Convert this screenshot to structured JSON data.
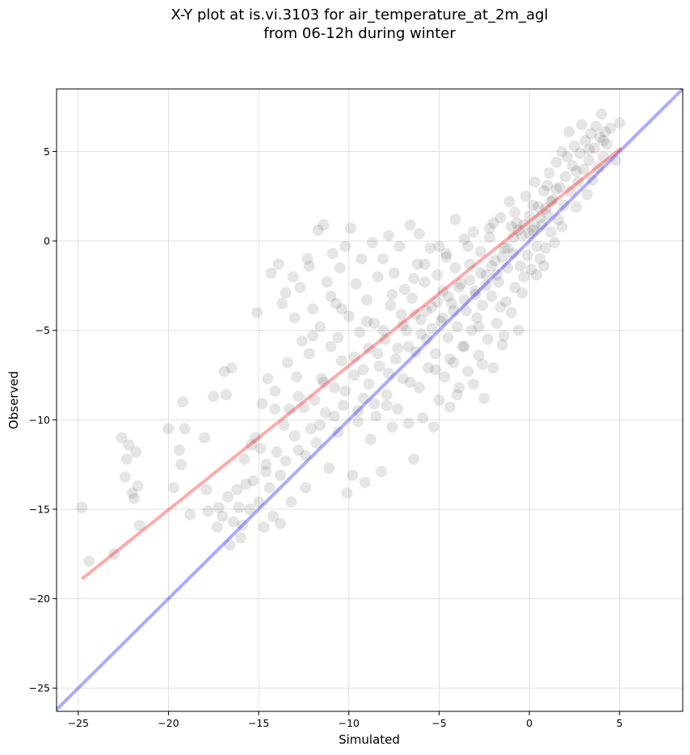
{
  "chart_data": {
    "type": "scatter",
    "title_line1": "X-Y plot at is.vi.3103 for air_temperature_at_2m_agl",
    "title_line2": "from 06-12h during winter",
    "xlabel": "Simulated",
    "ylabel": "Observed",
    "xlim": [
      -26.2,
      8.5
    ],
    "ylim": [
      -26.3,
      8.5
    ],
    "xticks": [
      -25,
      -20,
      -15,
      -10,
      -5,
      0,
      5
    ],
    "yticks": [
      -25,
      -20,
      -15,
      -10,
      -5,
      0,
      5
    ],
    "xtick_labels": [
      "−25",
      "−20",
      "−15",
      "−10",
      "−5",
      "0",
      "5"
    ],
    "ytick_labels": [
      "−25",
      "−20",
      "−15",
      "−10",
      "−5",
      "0",
      "5"
    ],
    "grid": true,
    "colors": {
      "points": "#000000",
      "fit_line": "#ff0000",
      "identity_line": "#0000ff",
      "grid": "#e0e0e0"
    },
    "fit_line": {
      "x": [
        -24.8,
        5.1
      ],
      "y": [
        -18.9,
        5.2
      ]
    },
    "identity_line": {
      "x": [
        -26.2,
        8.5
      ],
      "y": [
        -26.2,
        8.5
      ]
    },
    "points": [
      [
        -24.8,
        -14.9
      ],
      [
        -24.4,
        -17.9
      ],
      [
        -23.0,
        -17.5
      ],
      [
        -22.6,
        -11.0
      ],
      [
        -22.3,
        -12.2
      ],
      [
        -22.2,
        -11.4
      ],
      [
        -22.0,
        -14.1
      ],
      [
        -21.8,
        -11.8
      ],
      [
        -21.7,
        -13.7
      ],
      [
        -21.6,
        -15.9
      ],
      [
        -22.4,
        -13.2
      ],
      [
        -21.9,
        -14.4
      ],
      [
        -20.0,
        -10.5
      ],
      [
        -19.7,
        -13.8
      ],
      [
        -19.4,
        -11.7
      ],
      [
        -19.3,
        -12.5
      ],
      [
        -19.2,
        -9.0
      ],
      [
        -19.1,
        -10.5
      ],
      [
        -18.8,
        -15.3
      ],
      [
        -18.0,
        -11.0
      ],
      [
        -17.9,
        -13.9
      ],
      [
        -17.8,
        -15.1
      ],
      [
        -17.5,
        -8.7
      ],
      [
        -17.3,
        -16.0
      ],
      [
        -17.2,
        -14.9
      ],
      [
        -17.0,
        -15.4
      ],
      [
        -16.9,
        -7.3
      ],
      [
        -16.8,
        -8.6
      ],
      [
        -16.6,
        -17.0
      ],
      [
        -16.5,
        -7.1
      ],
      [
        -16.4,
        -15.7
      ],
      [
        -16.2,
        -13.9
      ],
      [
        -16.1,
        -14.9
      ],
      [
        -16.0,
        -16.6
      ],
      [
        -15.9,
        -15.9
      ],
      [
        -15.7,
        -13.6
      ],
      [
        -15.5,
        -15.0
      ],
      [
        -15.3,
        -13.4
      ],
      [
        -15.2,
        -11.0
      ],
      [
        -15.1,
        -4.0
      ],
      [
        -15.0,
        -14.6
      ],
      [
        -14.9,
        -11.6
      ],
      [
        -14.8,
        -9.1
      ],
      [
        -14.7,
        -16.0
      ],
      [
        -14.6,
        -12.5
      ],
      [
        -14.5,
        -7.7
      ],
      [
        -14.4,
        -13.8
      ],
      [
        -14.3,
        -1.8
      ],
      [
        -14.2,
        -15.4
      ],
      [
        -14.1,
        -8.4
      ],
      [
        -14.0,
        -11.8
      ],
      [
        -13.9,
        -1.3
      ],
      [
        -13.8,
        -15.8
      ],
      [
        -13.7,
        -3.5
      ],
      [
        -13.6,
        -10.3
      ],
      [
        -13.5,
        -12.3
      ],
      [
        -13.4,
        -6.8
      ],
      [
        -13.3,
        -9.4
      ],
      [
        -13.2,
        -14.6
      ],
      [
        -13.1,
        -2.0
      ],
      [
        -13.0,
        -4.3
      ],
      [
        -12.9,
        -7.6
      ],
      [
        -12.8,
        -11.7
      ],
      [
        -12.7,
        -2.6
      ],
      [
        -12.6,
        -5.6
      ],
      [
        -12.5,
        -9.3
      ],
      [
        -12.4,
        -13.8
      ],
      [
        -12.3,
        -1.0
      ],
      [
        -12.2,
        -6.3
      ],
      [
        -12.1,
        -10.5
      ],
      [
        -12.0,
        -3.8
      ],
      [
        -11.9,
        -8.9
      ],
      [
        -11.8,
        -11.3
      ],
      [
        -11.7,
        0.6
      ],
      [
        -11.6,
        -4.8
      ],
      [
        -11.5,
        -7.7
      ],
      [
        -11.4,
        0.9
      ],
      [
        -11.3,
        -9.6
      ],
      [
        -11.2,
        -2.3
      ],
      [
        -11.1,
        -12.7
      ],
      [
        -11.0,
        -5.9
      ],
      [
        -10.9,
        -0.7
      ],
      [
        -10.8,
        -8.2
      ],
      [
        -10.7,
        -3.5
      ],
      [
        -10.6,
        -10.7
      ],
      [
        -10.5,
        -1.5
      ],
      [
        -10.4,
        -6.7
      ],
      [
        -10.3,
        -9.2
      ],
      [
        -10.2,
        -0.3
      ],
      [
        -10.1,
        -14.1
      ],
      [
        -10.0,
        -4.2
      ],
      [
        -9.9,
        0.7
      ],
      [
        -9.8,
        -13.1
      ],
      [
        -9.7,
        -7.5
      ],
      [
        -9.6,
        -2.4
      ],
      [
        -9.5,
        -10.1
      ],
      [
        -9.4,
        -5.1
      ],
      [
        -9.3,
        -1.0
      ],
      [
        -9.2,
        -8.8
      ],
      [
        -9.1,
        -13.5
      ],
      [
        -9.0,
        -3.3
      ],
      [
        -8.9,
        -6.0
      ],
      [
        -8.8,
        -11.1
      ],
      [
        -8.7,
        -0.1
      ],
      [
        -8.6,
        -4.6
      ],
      [
        -8.5,
        -9.8
      ],
      [
        -8.4,
        -2.0
      ],
      [
        -8.3,
        -7.0
      ],
      [
        -8.2,
        -12.9
      ],
      [
        -8.1,
        -1.0
      ],
      [
        -8.0,
        -5.5
      ],
      [
        -7.9,
        -8.6
      ],
      [
        -7.8,
        0.3
      ],
      [
        -7.7,
        -3.6
      ],
      [
        -7.6,
        -10.4
      ],
      [
        -7.5,
        -1.8
      ],
      [
        -7.4,
        -6.6
      ],
      [
        -7.3,
        -9.4
      ],
      [
        -7.2,
        -0.3
      ],
      [
        -7.1,
        -4.1
      ],
      [
        -7.0,
        -7.7
      ],
      [
        -6.9,
        -2.7
      ],
      [
        -6.8,
        -5.0
      ],
      [
        -6.7,
        -10.2
      ],
      [
        -6.6,
        0.9
      ],
      [
        -6.5,
        -3.2
      ],
      [
        -6.4,
        -12.2
      ],
      [
        -6.3,
        -6.2
      ],
      [
        -6.2,
        -1.3
      ],
      [
        -6.1,
        -8.2
      ],
      [
        -6.0,
        -4.4
      ],
      [
        -5.9,
        -9.9
      ],
      [
        -5.8,
        -2.3
      ],
      [
        -5.7,
        -5.5
      ],
      [
        -5.6,
        -7.1
      ],
      [
        -5.5,
        -0.4
      ],
      [
        -5.4,
        -3.7
      ],
      [
        -5.3,
        -10.4
      ],
      [
        -5.2,
        -6.3
      ],
      [
        -5.1,
        -1.9
      ],
      [
        -5.0,
        -8.9
      ],
      [
        -4.9,
        -4.5
      ],
      [
        -4.8,
        -2.8
      ],
      [
        -4.7,
        -7.6
      ],
      [
        -4.6,
        -0.7
      ],
      [
        -4.5,
        -5.4
      ],
      [
        -4.4,
        -9.3
      ],
      [
        -4.3,
        -3.5
      ],
      [
        -4.2,
        -6.8
      ],
      [
        -4.1,
        -1.5
      ],
      [
        -4.0,
        -4.8
      ],
      [
        -3.9,
        -8.2
      ],
      [
        -3.8,
        -2.4
      ],
      [
        -3.7,
        -5.9
      ],
      [
        -3.6,
        0.1
      ],
      [
        -3.5,
        -3.9
      ],
      [
        -3.4,
        -7.3
      ],
      [
        -3.3,
        -1.3
      ],
      [
        -3.2,
        -5.0
      ],
      [
        -3.1,
        -8.0
      ],
      [
        -3.0,
        -2.8
      ],
      [
        -2.9,
        -4.3
      ],
      [
        -2.8,
        -6.4
      ],
      [
        -2.7,
        -0.6
      ],
      [
        -2.6,
        -3.6
      ],
      [
        -2.5,
        -8.8
      ],
      [
        -2.4,
        -1.9
      ],
      [
        -2.3,
        -5.5
      ],
      [
        -2.2,
        0.7
      ],
      [
        -2.1,
        -3.1
      ],
      [
        -2.0,
        -7.1
      ],
      [
        -1.9,
        -1.1
      ],
      [
        -1.8,
        -4.6
      ],
      [
        -1.7,
        -2.3
      ],
      [
        -1.6,
        1.3
      ],
      [
        -1.5,
        -5.8
      ],
      [
        -1.4,
        -0.4
      ],
      [
        -1.3,
        -3.4
      ],
      [
        -1.2,
        -1.5
      ],
      [
        -1.1,
        2.2
      ],
      [
        -1.0,
        -4.0
      ],
      [
        -0.9,
        -0.7
      ],
      [
        -0.8,
        -2.6
      ],
      [
        -0.7,
        1.0
      ],
      [
        -0.6,
        -5.0
      ],
      [
        -0.5,
        -1.4
      ],
      [
        -0.4,
        0.3
      ],
      [
        -0.3,
        -2.0
      ],
      [
        -0.2,
        2.5
      ],
      [
        -0.1,
        -0.8
      ],
      [
        0.0,
        1.4
      ],
      [
        0.1,
        -1.6
      ],
      [
        0.2,
        0.6
      ],
      [
        0.3,
        3.3
      ],
      [
        0.4,
        -0.3
      ],
      [
        0.5,
        1.9
      ],
      [
        0.6,
        -1.0
      ],
      [
        0.7,
        0.9
      ],
      [
        0.8,
        2.8
      ],
      [
        0.9,
        -0.4
      ],
      [
        1.0,
        1.5
      ],
      [
        1.1,
        3.8
      ],
      [
        1.2,
        0.5
      ],
      [
        1.3,
        2.3
      ],
      [
        1.4,
        -0.1
      ],
      [
        1.5,
        4.4
      ],
      [
        1.6,
        1.2
      ],
      [
        1.7,
        3.0
      ],
      [
        1.8,
        5.0
      ],
      [
        1.9,
        2.0
      ],
      [
        2.0,
        3.6
      ],
      [
        2.1,
        4.7
      ],
      [
        2.2,
        6.1
      ],
      [
        2.3,
        2.8
      ],
      [
        2.4,
        4.2
      ],
      [
        2.5,
        5.3
      ],
      [
        2.6,
        1.9
      ],
      [
        2.7,
        3.3
      ],
      [
        2.8,
        4.9
      ],
      [
        2.9,
        6.5
      ],
      [
        3.0,
        4.0
      ],
      [
        3.1,
        5.6
      ],
      [
        3.2,
        2.6
      ],
      [
        3.3,
        4.5
      ],
      [
        3.4,
        6.0
      ],
      [
        3.5,
        3.4
      ],
      [
        3.6,
        5.2
      ],
      [
        3.7,
        6.4
      ],
      [
        3.8,
        4.1
      ],
      [
        3.9,
        5.8
      ],
      [
        4.0,
        7.1
      ],
      [
        4.1,
        4.7
      ],
      [
        4.2,
        6.1
      ],
      [
        4.3,
        5.4
      ],
      [
        4.5,
        6.3
      ],
      [
        4.8,
        4.5
      ],
      [
        5.0,
        6.6
      ],
      [
        -13.5,
        -2.9
      ],
      [
        -12.2,
        -1.4
      ],
      [
        -11.0,
        -3.1
      ],
      [
        -10.6,
        -5.4
      ],
      [
        -9.7,
        -6.5
      ],
      [
        -9.2,
        -7.2
      ],
      [
        -8.9,
        -8.0
      ],
      [
        -8.4,
        -6.3
      ],
      [
        -8.1,
        -5.0
      ],
      [
        -7.8,
        -7.4
      ],
      [
        -7.3,
        -6.0
      ],
      [
        -7.0,
        -4.7
      ],
      [
        -6.7,
        -5.9
      ],
      [
        -6.3,
        -4.1
      ],
      [
        -6.0,
        -5.2
      ],
      [
        -5.7,
        -3.9
      ],
      [
        -5.4,
        -4.9
      ],
      [
        -5.1,
        -3.4
      ],
      [
        -4.8,
        -4.3
      ],
      [
        -4.5,
        -3.1
      ],
      [
        -4.2,
        -3.9
      ],
      [
        -3.9,
        -2.6
      ],
      [
        -3.6,
        -3.3
      ],
      [
        -3.3,
        -2.2
      ],
      [
        -3.0,
        -3.0
      ],
      [
        -2.7,
        -1.8
      ],
      [
        -2.4,
        -2.5
      ],
      [
        -2.1,
        -1.4
      ],
      [
        -1.8,
        -1.9
      ],
      [
        -1.5,
        -0.9
      ],
      [
        -1.2,
        -0.4
      ],
      [
        -0.9,
        0.2
      ],
      [
        -0.6,
        0.6
      ],
      [
        -0.3,
        0.9
      ],
      [
        0.0,
        0.4
      ],
      [
        0.3,
        0.8
      ],
      [
        0.6,
        1.3
      ],
      [
        0.9,
        1.8
      ],
      [
        1.2,
        2.2
      ],
      [
        1.5,
        2.9
      ],
      [
        -12.8,
        -8.7
      ],
      [
        -11.4,
        -7.9
      ],
      [
        -10.2,
        -8.4
      ],
      [
        -9.5,
        -9.5
      ],
      [
        -8.6,
        -9.1
      ],
      [
        -12.4,
        -12.0
      ],
      [
        -11.6,
        -10.3
      ],
      [
        -10.8,
        -9.8
      ],
      [
        -13.0,
        -10.9
      ],
      [
        -14.1,
        -9.4
      ],
      [
        -15.4,
        -11.4
      ],
      [
        -14.6,
        -12.9
      ],
      [
        -13.8,
        -13.1
      ],
      [
        -16.7,
        -14.3
      ],
      [
        -15.8,
        -12.2
      ],
      [
        -12.0,
        -5.3
      ],
      [
        -10.4,
        -3.8
      ],
      [
        -9.0,
        -4.5
      ],
      [
        -7.6,
        -3.0
      ],
      [
        -6.4,
        -2.1
      ],
      [
        -5.8,
        -1.3
      ],
      [
        -4.6,
        -0.9
      ],
      [
        -3.4,
        -0.3
      ],
      [
        -2.2,
        0.2
      ],
      [
        -1.0,
        0.8
      ],
      [
        0.2,
        2.0
      ],
      [
        0.8,
        -1.4
      ],
      [
        -0.4,
        -2.9
      ],
      [
        -1.6,
        -3.7
      ],
      [
        -2.8,
        -4.8
      ],
      [
        -3.6,
        -5.9
      ],
      [
        -4.4,
        -6.6
      ],
      [
        -5.2,
        -7.2
      ],
      [
        -6.6,
        -7.9
      ],
      [
        -7.9,
        -9.2
      ],
      [
        -4.0,
        -8.6
      ],
      [
        -2.6,
        -6.9
      ],
      [
        -1.4,
        -5.3
      ],
      [
        0.4,
        -1.9
      ],
      [
        1.8,
        0.8
      ],
      [
        2.6,
        3.9
      ],
      [
        3.3,
        5.1
      ],
      [
        4.1,
        5.6
      ],
      [
        1.0,
        3.1
      ],
      [
        -0.8,
        1.6
      ],
      [
        -2.0,
        1.0
      ],
      [
        -3.1,
        0.5
      ],
      [
        -4.1,
        1.2
      ],
      [
        -5.0,
        -0.3
      ],
      [
        -6.1,
        0.4
      ]
    ]
  }
}
